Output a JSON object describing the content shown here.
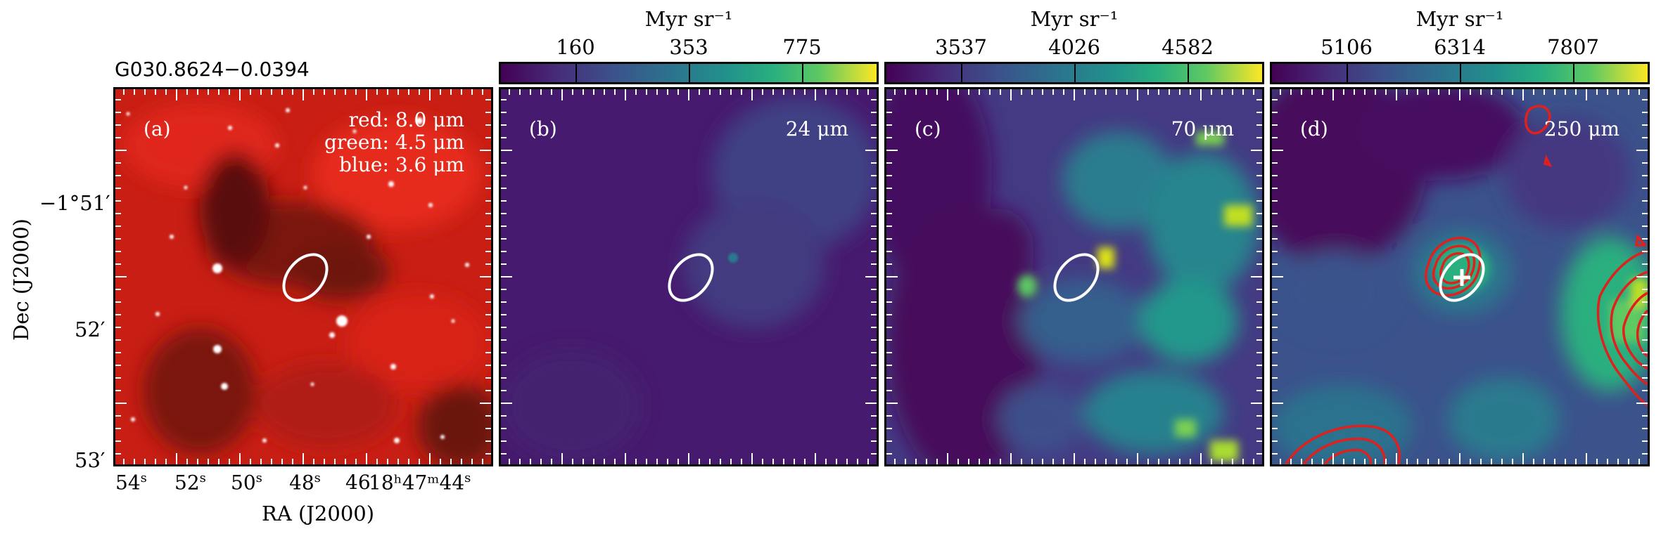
{
  "source_name": "G030.8624−0.0394",
  "axes": {
    "xlabel": "RA (J2000)",
    "ylabel": "Dec (J2000)",
    "x_ticks": [
      "54",
      "52",
      "50",
      "48",
      "46",
      "18ʰ47ᵐ44"
    ],
    "x_tick_sup": "s",
    "y_ticks": [
      "−1°51′",
      "52′",
      "53′"
    ]
  },
  "panels": [
    {
      "id": "a",
      "label": "(a)",
      "rgb_lines": [
        "red: 8.0 μm",
        "green: 4.5 μm",
        "blue: 3.6 μm"
      ]
    },
    {
      "id": "b",
      "label": "(b)",
      "wavelength": "24 μm",
      "colorbar": {
        "unit": "Myr sr⁻¹",
        "ticks": [
          "160",
          "353",
          "775"
        ]
      }
    },
    {
      "id": "c",
      "label": "(c)",
      "wavelength": "70 μm",
      "colorbar": {
        "unit": "Myr sr⁻¹",
        "ticks": [
          "3537",
          "4026",
          "4582"
        ]
      }
    },
    {
      "id": "d",
      "label": "(d)",
      "wavelength": "250 μm",
      "colorbar": {
        "unit": "Myr sr⁻¹",
        "ticks": [
          "5106",
          "6314",
          "7807"
        ]
      }
    }
  ],
  "colors": {
    "colormap": "viridis",
    "ellipse": "#ffffff",
    "contour": "#e0201c",
    "rgb_background": "#c81e14"
  }
}
